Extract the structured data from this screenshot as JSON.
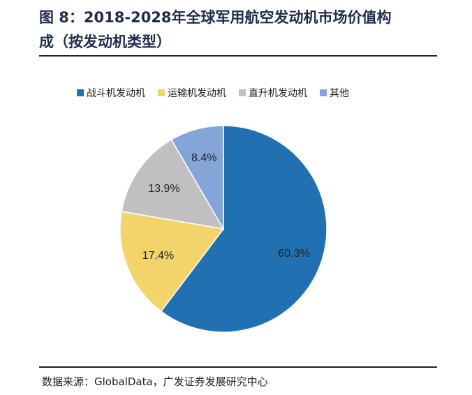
{
  "header": {
    "title_line1": "图 8：2018-2028年全球军用航空发动机市场价值构",
    "title_line2": "成（按发动机类型）"
  },
  "source": {
    "label": "数据来源：",
    "text": "GlobalData，广发证券发展研究中心"
  },
  "chart_data": {
    "type": "pie",
    "title": "2018-2028年全球军用航空发动机市场价值构成（按发动机类型）",
    "categories": [
      "战斗机发动机",
      "运输机发动机",
      "直升机发动机",
      "其他"
    ],
    "values": [
      60.3,
      17.4,
      13.9,
      8.4
    ],
    "labels": [
      "60.3%",
      "17.4%",
      "13.9%",
      "8.4%"
    ],
    "colors": [
      "#2170b1",
      "#f2d46a",
      "#c0c0c0",
      "#83a5d7"
    ],
    "legend_position": "top"
  }
}
